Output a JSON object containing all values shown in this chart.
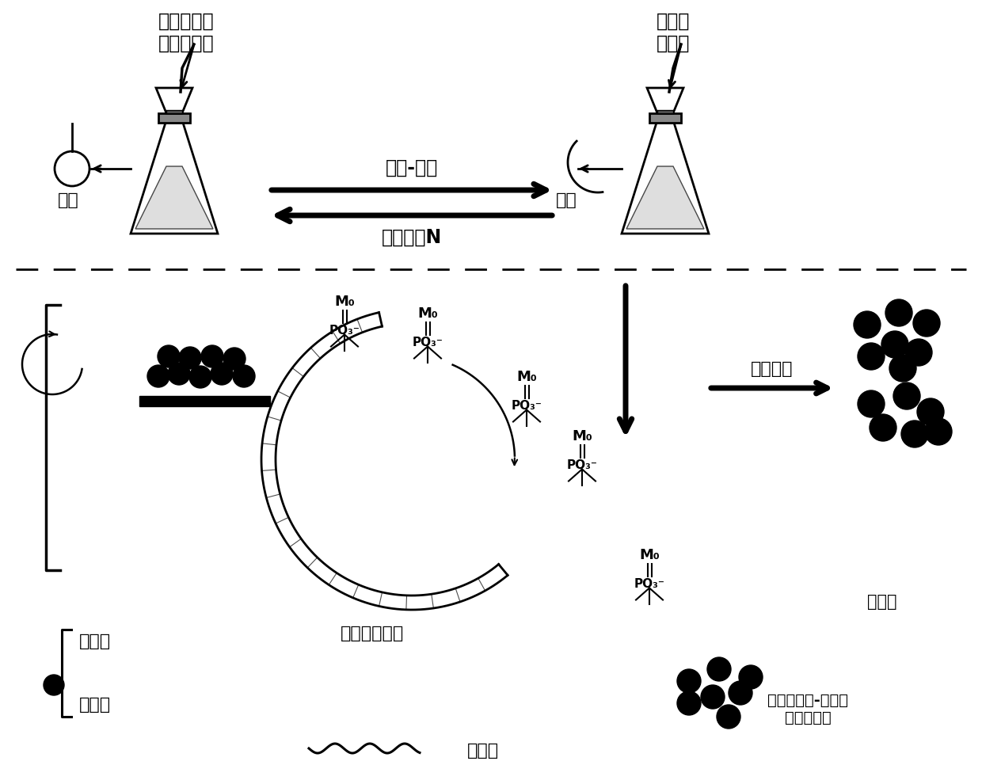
{
  "bg_color": "#ffffff",
  "text_color": "#000000",
  "labels": {
    "left_flask_reagent": "钒酸四丁酯\n锄酸四丁酯",
    "right_flask_reagent": "萱素红\n磷鐳酸",
    "sol_gel": "溶胶-凝胶",
    "cycle": "循环次数N",
    "left_pump": "抄滤",
    "right_pump": "抄滤",
    "nano_zirconia": "纳米二氧化锄",
    "cellulose": "纤维素",
    "redisperse": "复溶分散",
    "coomassie": "萱素红",
    "phosphomolybdic": "磷鐳酸",
    "composite": "金属氧化物-显色剂\n纳米复合物",
    "Mo_label": "M₀",
    "PO3_label": "PO₃⁻"
  },
  "figure_size": [
    12.4,
    9.9
  ],
  "dpi": 100
}
